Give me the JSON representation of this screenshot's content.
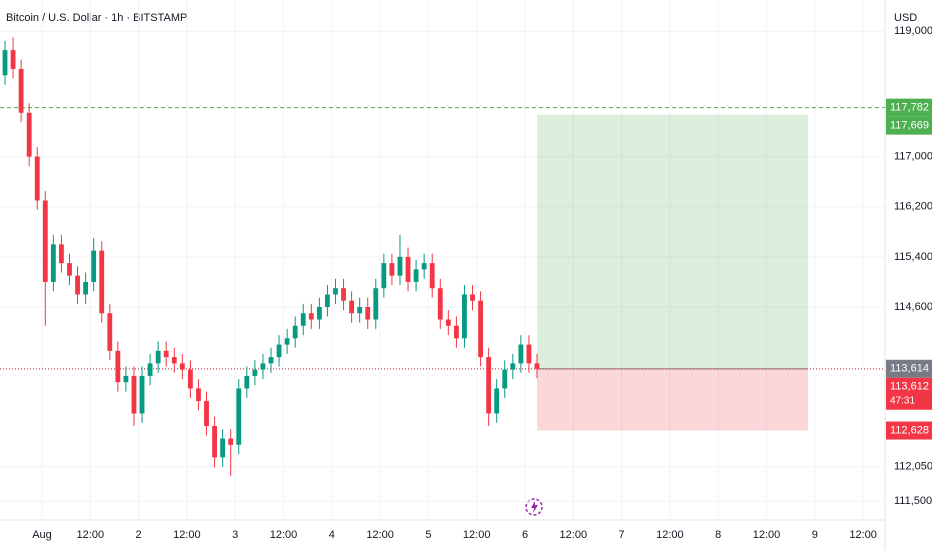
{
  "chart_data": {
    "type": "candlestick",
    "title": "Bitcoin / U.S. Dollar · 1h · BITSTAMP",
    "currency": "USD",
    "categories": [
      "Aug",
      "12:00",
      "2",
      "12:00",
      "3",
      "12:00",
      "4",
      "12:00",
      "5",
      "12:00",
      "6",
      "12:00",
      "7",
      "12:00",
      "8",
      "12:00",
      "9",
      "12:00"
    ],
    "up_color": "#089981",
    "down_color": "#f23645",
    "open": [
      118300,
      118700,
      118400,
      117700,
      117000,
      116300,
      115000,
      115600,
      115300,
      115100,
      114800,
      115000,
      115500,
      114500,
      113900,
      113400,
      113500,
      112900,
      113500,
      113700,
      113900,
      113800,
      113700,
      113600,
      113300,
      113100,
      112700,
      112200,
      112500,
      112400,
      113300,
      113500,
      113600,
      113700,
      113800,
      114000,
      114100,
      114300,
      114500,
      114400,
      114600,
      114800,
      114900,
      114700,
      114500,
      114600,
      114400,
      114900,
      115300,
      115100,
      115400,
      115000,
      115200,
      115300,
      114900,
      114400,
      114300,
      114100,
      114800,
      114700,
      113800,
      112900,
      113300,
      113600,
      113700,
      114000,
      113700
    ],
    "high": [
      118850,
      118900,
      118550,
      117850,
      117150,
      116450,
      115750,
      115750,
      115450,
      115250,
      115150,
      115700,
      115650,
      114650,
      114050,
      113650,
      113650,
      113650,
      113850,
      114050,
      114050,
      113950,
      113850,
      113750,
      113450,
      113250,
      112850,
      112650,
      112650,
      113450,
      113650,
      113750,
      113850,
      113950,
      114150,
      114250,
      114450,
      114650,
      114650,
      114750,
      114950,
      115050,
      115050,
      114850,
      114750,
      114750,
      115050,
      115450,
      115450,
      115750,
      115550,
      115350,
      115450,
      115450,
      115050,
      114550,
      114450,
      114950,
      114950,
      114850,
      113950,
      113450,
      113750,
      113850,
      114150,
      114150,
      113850
    ],
    "low": [
      118150,
      118250,
      117550,
      116850,
      116150,
      114300,
      114850,
      115150,
      114950,
      114650,
      114650,
      114850,
      114350,
      113750,
      113250,
      113250,
      112700,
      112750,
      113350,
      113550,
      113650,
      113550,
      113450,
      113150,
      112950,
      112550,
      112040,
      112050,
      111900,
      112250,
      113150,
      113350,
      113450,
      113550,
      113650,
      113850,
      113950,
      114150,
      114250,
      114250,
      114450,
      114650,
      114550,
      114350,
      114350,
      114250,
      114250,
      114750,
      114950,
      114950,
      114850,
      114850,
      115050,
      114750,
      114250,
      114150,
      113950,
      113950,
      114550,
      113650,
      112700,
      112750,
      113150,
      113450,
      113550,
      113550,
      113462
    ],
    "close": [
      118700,
      118400,
      117700,
      117000,
      116300,
      115000,
      115600,
      115300,
      115100,
      114800,
      115000,
      115500,
      114500,
      113900,
      113400,
      113500,
      112900,
      113500,
      113700,
      113900,
      113800,
      113700,
      113600,
      113300,
      113100,
      112700,
      112200,
      112500,
      112400,
      113300,
      113500,
      113600,
      113700,
      113800,
      114000,
      114100,
      114300,
      114500,
      114400,
      114600,
      114800,
      114900,
      114700,
      114500,
      114600,
      114400,
      114900,
      115300,
      115100,
      115400,
      115000,
      115200,
      115300,
      114900,
      114400,
      114300,
      114100,
      114800,
      114700,
      113800,
      112900,
      113300,
      113600,
      113700,
      114000,
      113700,
      113612
    ],
    "ylim": [
      111200,
      119500
    ],
    "yticks": [
      {
        "value": 119000,
        "label": "119,000"
      },
      {
        "value": 117000,
        "label": "117,000"
      },
      {
        "value": 116200,
        "label": "116,200"
      },
      {
        "value": 115400,
        "label": "115,400"
      },
      {
        "value": 114600,
        "label": "114,600"
      },
      {
        "value": 112050,
        "label": "112,050"
      },
      {
        "value": 111500,
        "label": "111,500"
      }
    ],
    "alert_line": {
      "value": 117782,
      "label": "117,782",
      "color": "#4caf50"
    },
    "last_line": {
      "value": 113614,
      "label": "113,614",
      "color": "#787b86"
    },
    "position": {
      "target": {
        "value": 117669,
        "label": "117,669",
        "color": "#4caf50"
      },
      "entry": {
        "value": 113612,
        "label": "113,612",
        "color": "#f23645"
      },
      "stop": {
        "value": 112628,
        "label": "112,628",
        "color": "#f23645"
      },
      "countdown": "47:31"
    }
  }
}
